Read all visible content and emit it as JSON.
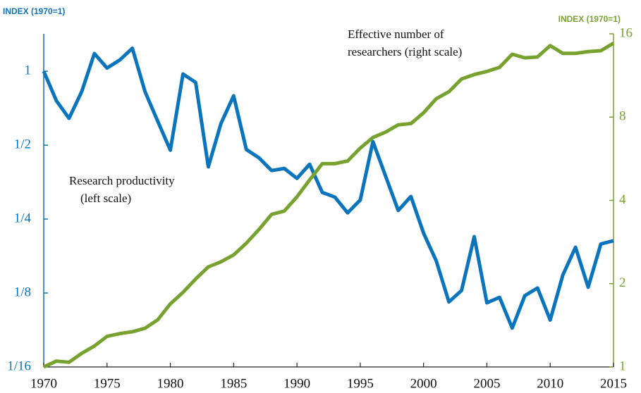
{
  "chart_data": {
    "type": "line",
    "y_axis_title": "INDEX (1970=1)",
    "y2_axis_title": "INDEX (1970=1)",
    "annotations": [
      {
        "lines": [
          "Effective number of",
          "researchers (right scale)"
        ]
      },
      {
        "lines": [
          "Research productivity",
          "(left scale)"
        ]
      }
    ],
    "log_scale": true,
    "x": [
      1970,
      1971,
      1972,
      1973,
      1974,
      1975,
      1976,
      1977,
      1978,
      1979,
      1980,
      1981,
      1982,
      1983,
      1984,
      1985,
      1986,
      1987,
      1988,
      1989,
      1990,
      1991,
      1992,
      1993,
      1994,
      1995,
      1996,
      1997,
      1998,
      1999,
      2000,
      2001,
      2002,
      2003,
      2004,
      2005,
      2006,
      2007,
      2008,
      2009,
      2010,
      2011,
      2012,
      2013,
      2014,
      2015
    ],
    "xlim": [
      1970,
      2015
    ],
    "xticks": [
      1970,
      1975,
      1980,
      1985,
      1990,
      1995,
      2000,
      2005,
      2010,
      2015
    ],
    "ylim": [
      0.0625,
      1.42
    ],
    "yticks": [
      {
        "value": 0.0625,
        "label": "1/16"
      },
      {
        "value": 0.125,
        "label": "1/8"
      },
      {
        "value": 0.25,
        "label": "1/4"
      },
      {
        "value": 0.5,
        "label": "1/2"
      },
      1
    ],
    "y2lim": [
      1,
      16
    ],
    "y2ticks": [
      1,
      2,
      4,
      8,
      16
    ],
    "series": [
      {
        "name": "Research productivity",
        "color": "#0a74bd",
        "values": [
          1.0,
          0.758,
          0.643,
          0.826,
          1.18,
          1.03,
          1.11,
          1.24,
          0.826,
          0.626,
          0.477,
          0.974,
          0.9,
          0.408,
          0.613,
          0.794,
          0.48,
          0.444,
          0.394,
          0.402,
          0.366,
          0.418,
          0.321,
          0.307,
          0.265,
          0.299,
          0.517,
          0.374,
          0.271,
          0.309,
          0.219,
          0.169,
          0.115,
          0.128,
          0.212,
          0.114,
          0.12,
          0.09,
          0.122,
          0.131,
          0.097,
          0.148,
          0.192,
          0.132,
          0.198,
          0.204
        ]
      },
      {
        "name": "Effective number of researchers",
        "color": "#78a22f",
        "axis": "y2",
        "values": [
          1,
          1.05,
          1.04,
          1.12,
          1.19,
          1.29,
          1.32,
          1.34,
          1.38,
          1.48,
          1.69,
          1.86,
          2.08,
          2.3,
          2.4,
          2.54,
          2.8,
          3.14,
          3.56,
          3.66,
          4.12,
          4.74,
          5.43,
          5.43,
          5.55,
          6.18,
          6.75,
          7.06,
          7.5,
          7.58,
          8.29,
          9.32,
          9.88,
          10.99,
          11.4,
          11.7,
          12.1,
          13.5,
          13.1,
          13.2,
          14.5,
          13.6,
          13.6,
          13.8,
          13.9,
          14.8
        ]
      }
    ]
  }
}
